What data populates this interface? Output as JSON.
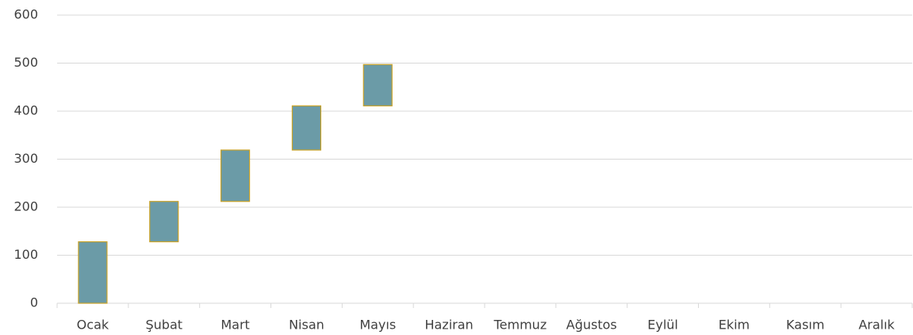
{
  "chart_data": {
    "type": "waterfall",
    "categories": [
      "Ocak",
      "Şubat",
      "Mart",
      "Nisan",
      "Mayıs",
      "Haziran",
      "Temmuz",
      "Ağustos",
      "Eylül",
      "Ekim",
      "Kasım",
      "Aralık"
    ],
    "values": [
      128,
      84,
      107,
      92,
      86,
      null,
      null,
      null,
      null,
      null,
      null,
      null
    ],
    "color": "#6b9ba7",
    "edge_color": "#c9a227",
    "ylim": [
      0,
      600
    ],
    "yticks": [
      0,
      100,
      200,
      300,
      400,
      500,
      600
    ],
    "grid": true
  }
}
